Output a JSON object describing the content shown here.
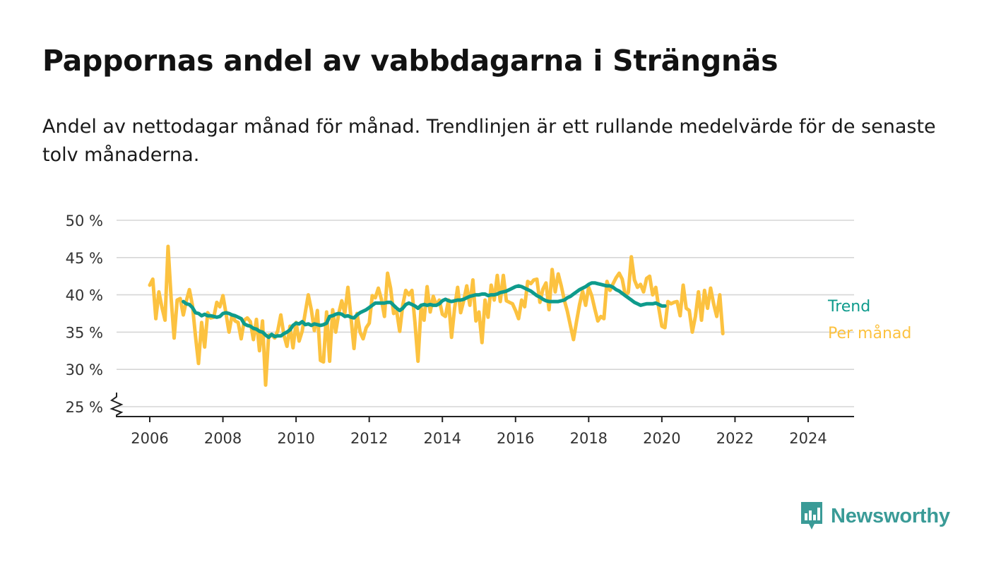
{
  "title": "Pappornas andel av vabbdagarna i Strängnäs",
  "subtitle": "Andel av nettodagar månad för månad. Trendlinjen är ett rullande medelvärde för de senaste tolv månaderna.",
  "brand": {
    "name": "Newsworthy",
    "color": "#3a9b97",
    "icon": "newsworthy-logo-icon"
  },
  "chart_data": {
    "type": "line",
    "xlabel": "",
    "ylabel": "",
    "xlim": [
      2005.3,
      2025.3
    ],
    "ylim": [
      24,
      50
    ],
    "grid": true,
    "y_axis_break": true,
    "legend_placement": "right-end-labels",
    "y_ticks": [
      25,
      30,
      35,
      40,
      45,
      50
    ],
    "y_tick_labels": [
      "25 %",
      "30 %",
      "35 %",
      "40 %",
      "45 %",
      "50 %"
    ],
    "x_ticks": [
      2006,
      2008,
      2010,
      2012,
      2014,
      2016,
      2018,
      2020,
      2022,
      2024
    ],
    "x_tick_labels": [
      "2006",
      "2008",
      "2010",
      "2012",
      "2014",
      "2016",
      "2018",
      "2020",
      "2022",
      "2024"
    ],
    "series": [
      {
        "name": "Per månad",
        "color": "#fcc240",
        "x_start": 2006.0,
        "x_step": 0.0833333,
        "values": [
          41.3,
          42.1,
          36.8,
          40.4,
          38.3,
          36.6,
          46.5,
          39.6,
          34.2,
          39.3,
          39.5,
          37.3,
          39.2,
          40.7,
          38.6,
          34.5,
          30.8,
          36.3,
          33.0,
          37.6,
          36.9,
          37.0,
          39.0,
          38.4,
          39.9,
          37.5,
          35.0,
          37.3,
          36.5,
          36.3,
          34.1,
          36.6,
          36.9,
          36.4,
          34.0,
          36.7,
          32.5,
          36.5,
          27.9,
          34.6,
          34.6,
          34.2,
          35.2,
          37.3,
          34.6,
          33.1,
          35.8,
          32.9,
          36.3,
          33.8,
          35.1,
          37.6,
          40.0,
          38.0,
          35.2,
          37.9,
          31.2,
          31.0,
          37.7,
          31.1,
          38.0,
          35.0,
          37.5,
          39.2,
          37.5,
          41.0,
          37.0,
          32.8,
          37.5,
          35.0,
          34.1,
          35.6,
          36.2,
          39.9,
          39.6,
          40.9,
          39.4,
          37.1,
          42.9,
          40.9,
          37.5,
          37.8,
          35.1,
          38.6,
          40.6,
          40.0,
          40.6,
          36.3,
          31.1,
          38.3,
          36.6,
          41.1,
          37.7,
          39.8,
          38.6,
          39.3,
          37.4,
          37.1,
          39.3,
          34.3,
          38.2,
          41.0,
          37.6,
          39.2,
          41.2,
          38.6,
          42.0,
          36.5,
          37.7,
          33.6,
          39.3,
          37.0,
          41.3,
          39.3,
          42.6,
          39.1,
          42.6,
          39.2,
          39.0,
          38.8,
          37.9,
          36.8,
          39.3,
          38.4,
          41.8,
          41.5,
          42.0,
          42.1,
          39.0,
          40.8,
          41.6,
          38.0,
          43.4,
          40.4,
          42.8,
          41.2,
          39.3,
          37.8,
          35.9,
          34.0,
          36.4,
          38.7,
          40.5,
          38.6,
          41.0,
          39.9,
          38.1,
          36.5,
          37.1,
          36.8,
          41.8,
          40.6,
          41.5,
          42.3,
          42.9,
          42.1,
          40.0,
          40.3,
          45.1,
          42.0,
          41.0,
          41.4,
          40.4,
          42.2,
          42.5,
          40.0,
          41.0,
          38.2,
          35.8,
          35.6,
          39.1,
          38.8,
          39.0,
          39.1,
          37.2,
          41.3,
          38.2,
          37.9,
          35.0,
          37.1,
          40.4,
          36.6,
          40.6,
          38.2,
          40.9,
          38.8,
          37.1,
          40.0,
          34.8
        ]
      },
      {
        "name": "Trend",
        "color": "#0e9b8c",
        "x_start": 2006.917,
        "x_step": 0.0833333,
        "values": [
          39.1,
          38.8,
          38.7,
          38.3,
          37.6,
          37.5,
          37.2,
          37.4,
          37.2,
          37.2,
          37.1,
          37.0,
          37.1,
          37.5,
          37.6,
          37.5,
          37.3,
          37.2,
          37.0,
          36.8,
          36.1,
          35.9,
          35.8,
          35.5,
          35.4,
          35.1,
          35.0,
          34.6,
          34.3,
          34.7,
          34.4,
          34.5,
          34.5,
          34.8,
          35.0,
          35.3,
          35.9,
          36.2,
          36.1,
          36.4,
          36.0,
          36.1,
          35.9,
          36.1,
          36.0,
          35.9,
          36.0,
          36.2,
          37.1,
          37.2,
          37.4,
          37.5,
          37.4,
          37.1,
          37.2,
          37.0,
          36.9,
          37.3,
          37.6,
          37.8,
          38.0,
          38.3,
          38.6,
          38.9,
          38.9,
          38.9,
          38.9,
          39.0,
          39.0,
          38.6,
          38.2,
          37.9,
          38.2,
          38.7,
          38.9,
          38.7,
          38.5,
          38.2,
          38.6,
          38.7,
          38.6,
          38.7,
          38.6,
          38.6,
          38.8,
          39.2,
          39.4,
          39.2,
          39.1,
          39.2,
          39.3,
          39.3,
          39.4,
          39.6,
          39.8,
          39.9,
          40.0,
          40.0,
          40.1,
          40.1,
          39.9,
          40.0,
          40.0,
          40.1,
          40.3,
          40.4,
          40.5,
          40.7,
          40.9,
          41.1,
          41.2,
          41.1,
          40.9,
          40.7,
          40.5,
          40.2,
          39.9,
          39.7,
          39.4,
          39.2,
          39.1,
          39.1,
          39.1,
          39.1,
          39.2,
          39.3,
          39.6,
          39.8,
          40.1,
          40.4,
          40.7,
          40.9,
          41.1,
          41.4,
          41.6,
          41.6,
          41.5,
          41.4,
          41.3,
          41.2,
          41.2,
          41.0,
          40.7,
          40.5,
          40.2,
          39.9,
          39.6,
          39.3,
          39.0,
          38.8,
          38.6,
          38.7,
          38.8,
          38.8,
          38.8,
          38.9,
          38.7,
          38.5,
          38.5
        ]
      }
    ]
  }
}
